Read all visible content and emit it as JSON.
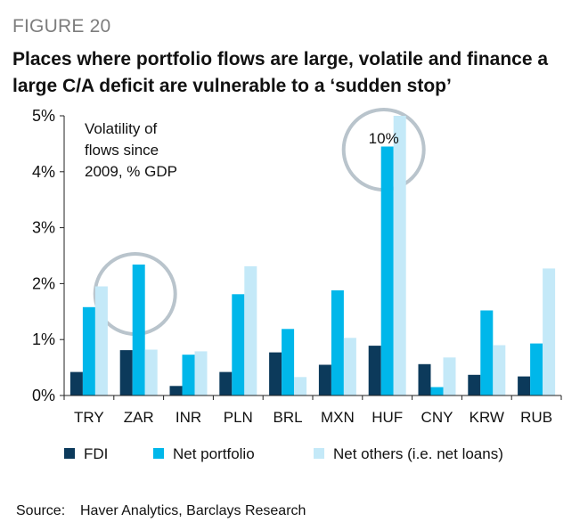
{
  "figure_label": "FIGURE 20",
  "title": "Places where portfolio flows are large, volatile and finance a large C/A deficit are vulnerable to a ‘sudden stop’",
  "source_label": "Source:",
  "source_text": "Haver Analytics, Barclays Research",
  "colors": {
    "fdi": "#0c3a5b",
    "net_portfolio": "#00b7ea",
    "net_others": "#c4e9f8",
    "circle": "#b9c4cc",
    "axis": "#222222"
  },
  "chart_data": {
    "type": "bar",
    "annotation": "Volatility of flows since 2009, % GDP",
    "annotation_lines": [
      "Volatility of",
      "flows since",
      "2009, % GDP"
    ],
    "categories": [
      "TRY",
      "ZAR",
      "INR",
      "PLN",
      "BRL",
      "MXN",
      "HUF",
      "CNY",
      "KRW",
      "RUB"
    ],
    "series": [
      {
        "name": "FDI",
        "color_key": "fdi",
        "values": [
          0.42,
          0.81,
          0.17,
          0.42,
          0.77,
          0.55,
          0.89,
          0.56,
          0.37,
          0.34
        ]
      },
      {
        "name": "Net portfolio",
        "color_key": "net_portfolio",
        "values": [
          1.58,
          2.34,
          0.73,
          1.81,
          1.19,
          1.88,
          4.45,
          0.15,
          1.52,
          0.93
        ]
      },
      {
        "name": "Net others (i.e. net loans)",
        "color_key": "net_others",
        "values": [
          1.95,
          0.82,
          0.79,
          2.31,
          0.33,
          1.03,
          5.0,
          0.68,
          0.9,
          2.27
        ]
      }
    ],
    "yticks": [
      0,
      1,
      2,
      3,
      4,
      5
    ],
    "ytick_labels": [
      "0%",
      "1%",
      "2%",
      "3%",
      "4%",
      "5%"
    ],
    "ylim": [
      0,
      5
    ],
    "callout": "10%",
    "highlighted_categories": [
      "ZAR",
      "HUF"
    ],
    "legend_position": "bottom",
    "grid": false
  }
}
